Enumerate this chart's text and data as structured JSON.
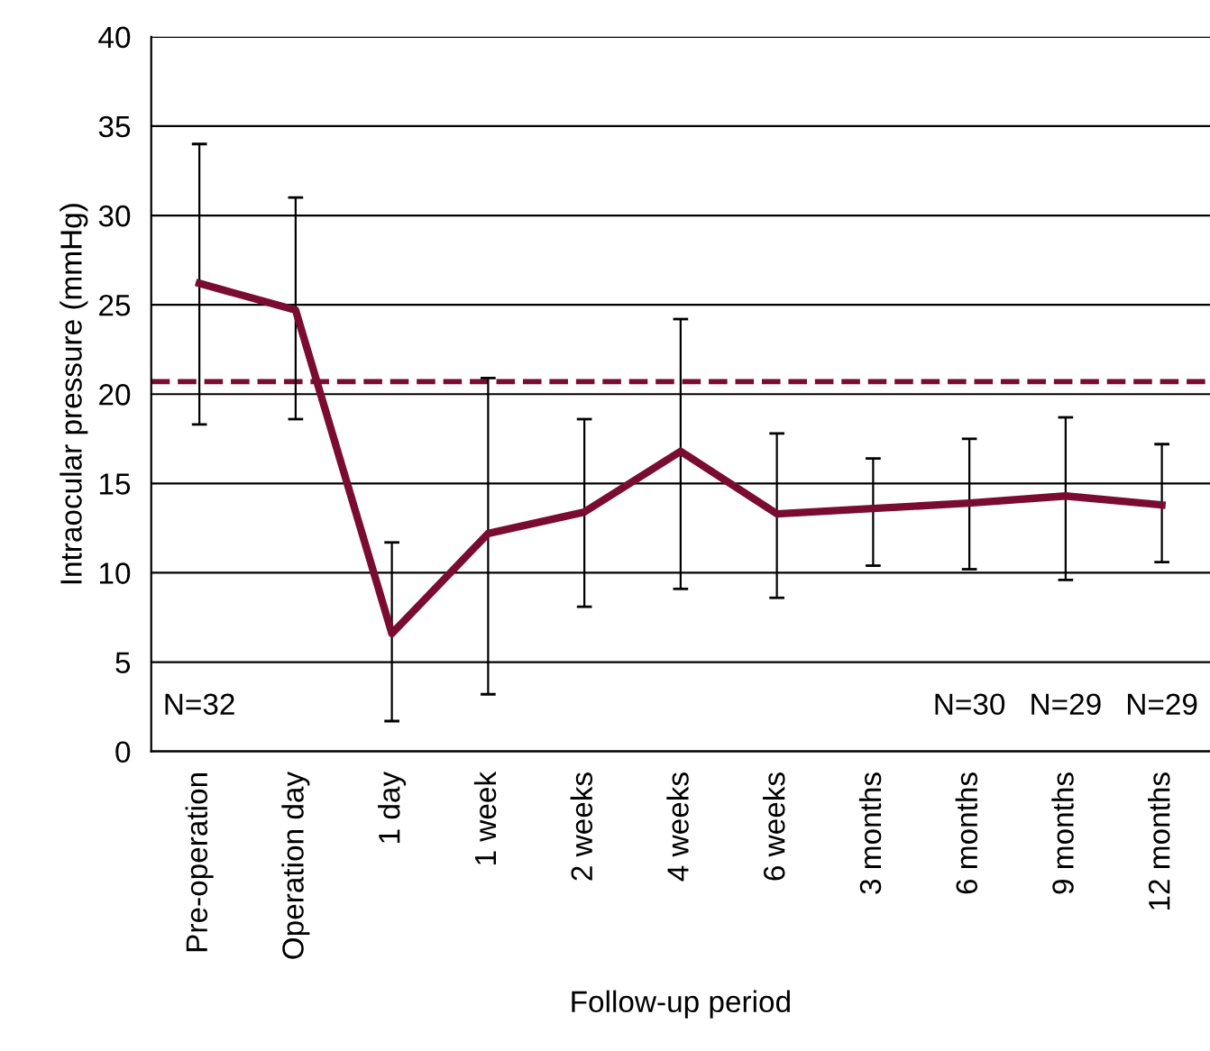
{
  "chart_data": {
    "type": "line",
    "xlabel": "Follow-up period",
    "ylabel": "Intraocular pressure (mmHg)",
    "categories": [
      "Pre-operation",
      "Operation day",
      "1 day",
      "1 week",
      "2 weeks",
      "4 weeks",
      "6 weeks",
      "3 months",
      "6 months",
      "9 months",
      "12 months"
    ],
    "series": [
      {
        "color": "#7a0c32",
        "values": [
          26.2,
          24.7,
          6.6,
          12.2,
          13.4,
          16.8,
          13.3,
          13.6,
          13.9,
          14.3,
          13.8
        ],
        "errors": [
          [
            18.3,
            34.0
          ],
          [
            18.6,
            31.0
          ],
          [
            1.7,
            11.7
          ],
          [
            3.2,
            20.9
          ],
          [
            8.1,
            18.6
          ],
          [
            9.1,
            24.2
          ],
          [
            8.6,
            17.8
          ],
          [
            10.4,
            16.4
          ],
          [
            10.2,
            17.5
          ],
          [
            9.6,
            18.7
          ],
          [
            10.6,
            17.2
          ]
        ]
      }
    ],
    "ylim": [
      0,
      40
    ],
    "yticks": [
      0,
      5,
      10,
      15,
      20,
      25,
      30,
      35,
      40
    ],
    "grid": "y",
    "marker": "none",
    "line_style": "solid",
    "ref_lines": [
      {
        "axis": "y",
        "value": 20.7,
        "color": "#7a0c32",
        "line_style": "dashed"
      }
    ],
    "annotations": [
      "N=32",
      "N=30",
      "N=29",
      "N=29"
    ]
  }
}
